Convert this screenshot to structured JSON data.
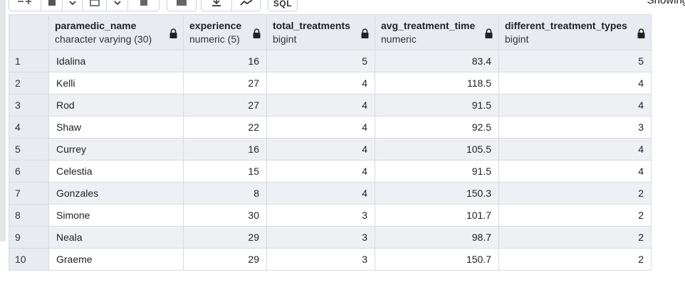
{
  "toolbar": {
    "status_text": "Showing rows",
    "buttons": [
      "add-row-icon",
      "copy-icon",
      "chevron-down-icon",
      "paste-icon",
      "chevron-down-icon",
      "delete-icon",
      "database-icon",
      "download-icon",
      "graph-icon",
      "sql-icon"
    ],
    "sql_label": "SQL"
  },
  "columns": [
    {
      "name": "paramedic_name",
      "type": "character varying (30)"
    },
    {
      "name": "experience",
      "type": "numeric (5)"
    },
    {
      "name": "total_treatments",
      "type": "bigint"
    },
    {
      "name": "avg_treatment_time",
      "type": "numeric"
    },
    {
      "name": "different_treatment_types",
      "type": "bigint"
    }
  ],
  "rows": [
    {
      "n": "1",
      "name": "Idalina",
      "exp": "16",
      "total": "5",
      "avg": "83.4",
      "types": "5"
    },
    {
      "n": "2",
      "name": "Kelli",
      "exp": "27",
      "total": "4",
      "avg": "118.5",
      "types": "4"
    },
    {
      "n": "3",
      "name": "Rod",
      "exp": "27",
      "total": "4",
      "avg": "91.5",
      "types": "4"
    },
    {
      "n": "4",
      "name": "Shaw",
      "exp": "22",
      "total": "4",
      "avg": "92.5",
      "types": "3"
    },
    {
      "n": "5",
      "name": "Currey",
      "exp": "16",
      "total": "4",
      "avg": "105.5",
      "types": "4"
    },
    {
      "n": "6",
      "name": "Celestia",
      "exp": "15",
      "total": "4",
      "avg": "91.5",
      "types": "4"
    },
    {
      "n": "7",
      "name": "Gonzales",
      "exp": "8",
      "total": "4",
      "avg": "150.3",
      "types": "2"
    },
    {
      "n": "8",
      "name": "Simone",
      "exp": "30",
      "total": "3",
      "avg": "101.7",
      "types": "2"
    },
    {
      "n": "9",
      "name": "Neala",
      "exp": "29",
      "total": "3",
      "avg": "98.7",
      "types": "2"
    },
    {
      "n": "10",
      "name": "Graeme",
      "exp": "29",
      "total": "3",
      "avg": "150.7",
      "types": "2"
    }
  ]
}
